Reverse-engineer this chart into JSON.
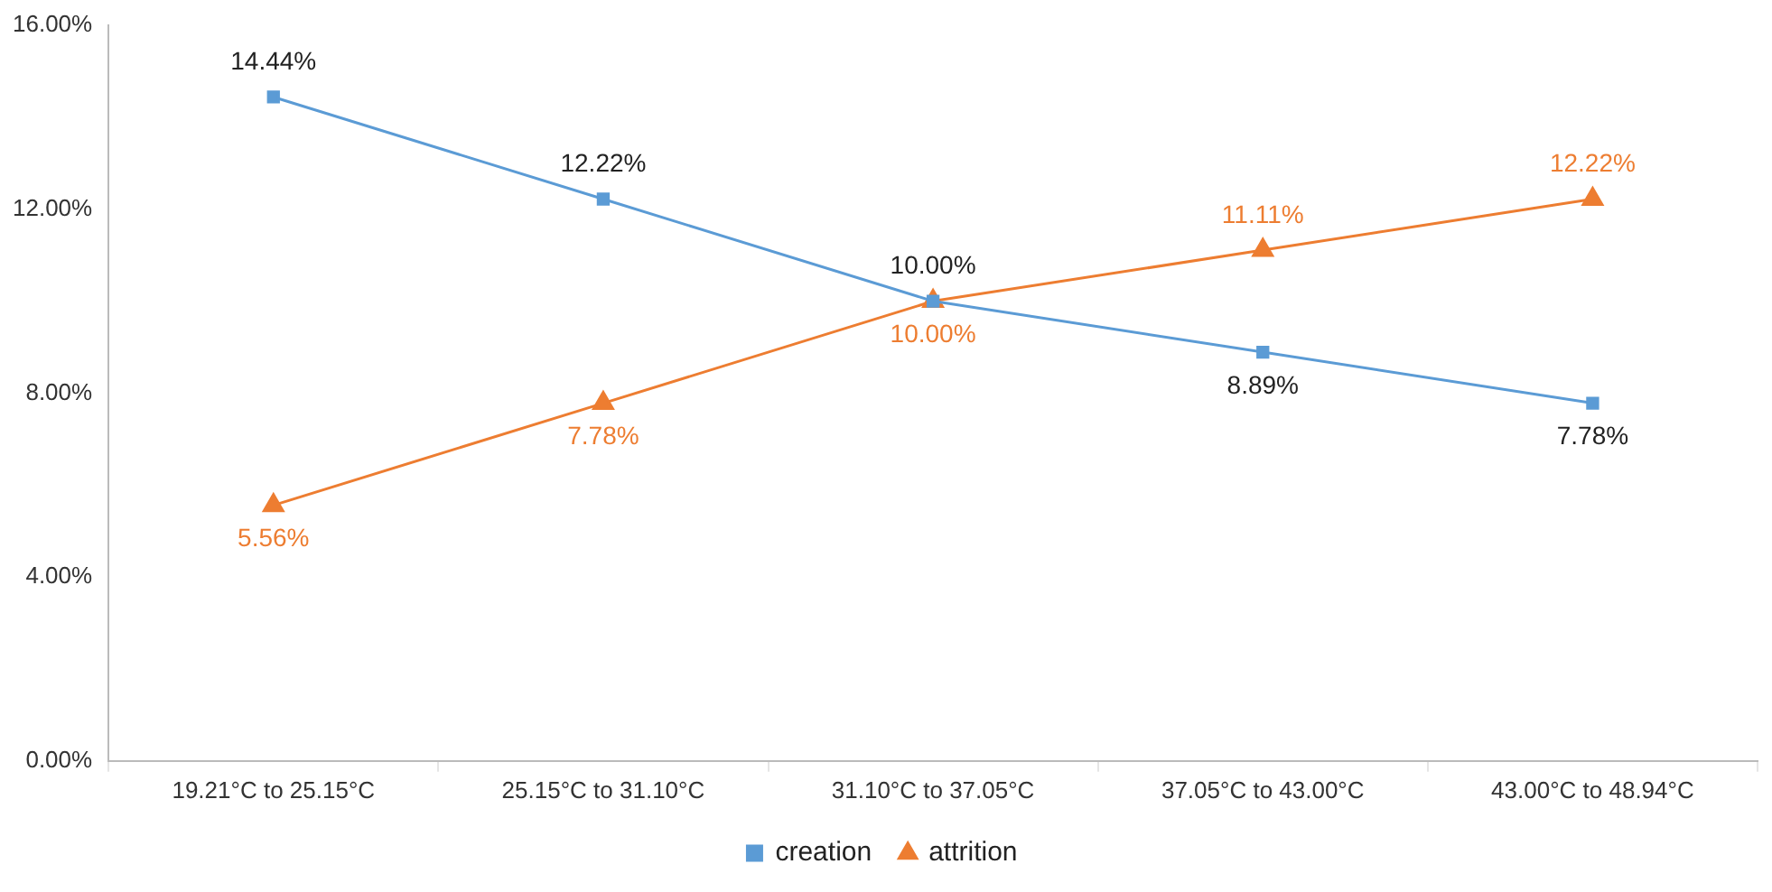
{
  "chart_data": {
    "type": "line",
    "categories": [
      "19.21°C to 25.15°C",
      "25.15°C to 31.10°C",
      "31.10°C to 37.05°C",
      "37.05°C to 43.00°C",
      "43.00°C to 48.94°C"
    ],
    "series": [
      {
        "name": "creation",
        "color": "#5b9bd5",
        "marker": "square",
        "values": [
          14.44,
          12.22,
          10.0,
          8.89,
          7.78
        ],
        "value_labels": [
          "14.44%",
          "12.22%",
          "10.00%",
          "8.89%",
          "7.78%"
        ]
      },
      {
        "name": "attrition",
        "color": "#ed7d31",
        "marker": "triangle",
        "values": [
          5.56,
          7.78,
          10.0,
          11.11,
          12.22
        ],
        "value_labels": [
          "5.56%",
          "7.78%",
          "10.00%",
          "11.11%",
          "12.22%"
        ]
      }
    ],
    "ylim": [
      0,
      16
    ],
    "yticks": [
      {
        "value": 0,
        "label": "0.00%"
      },
      {
        "value": 4,
        "label": "4.00%"
      },
      {
        "value": 8,
        "label": "8.00%"
      },
      {
        "value": 12,
        "label": "12.00%"
      },
      {
        "value": 16,
        "label": "16.00%"
      }
    ],
    "grid": false,
    "legend": "bottom",
    "line_style": "solid"
  }
}
